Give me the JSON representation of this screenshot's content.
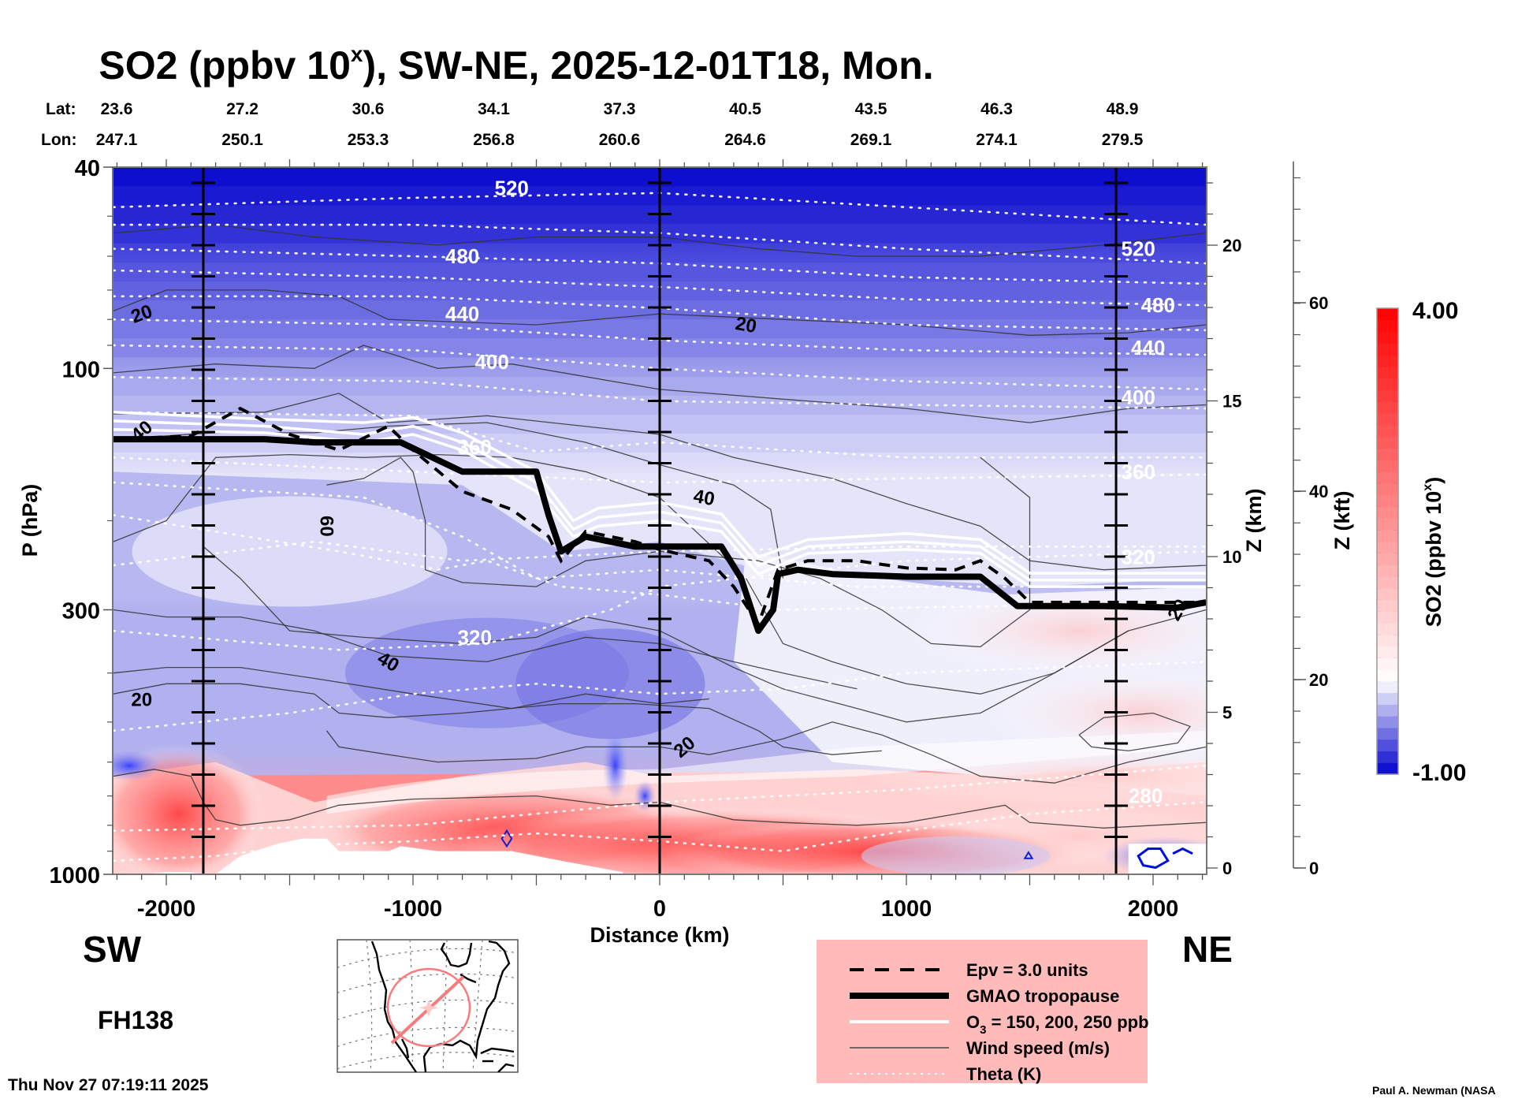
{
  "chart_data": {
    "type": "heatmap",
    "title": "SO2 (ppbv 10",
    "title_sup": "x",
    "title_suffix": "), SW-NE, 2025-12-01T18, Mon.",
    "lat_label": "Lat:",
    "lon_label": "Lon:",
    "lat_ticks": [
      "23.6",
      "27.2",
      "30.6",
      "34.1",
      "37.3",
      "40.5",
      "43.5",
      "46.3",
      "48.9"
    ],
    "lon_ticks": [
      "247.1",
      "250.1",
      "253.3",
      "256.8",
      "260.6",
      "264.6",
      "269.1",
      "274.1",
      "279.5"
    ],
    "latlon_distances_km": [
      -2000,
      -1600,
      -1200,
      -800,
      -400,
      0,
      400,
      800,
      1200
    ],
    "xlabel": "Distance (km)",
    "xlim": [
      -2215,
      2215
    ],
    "xticks": [
      -2000,
      -1000,
      0,
      1000,
      2000
    ],
    "xtick_labels": [
      "-2000",
      "-1000",
      "0",
      "1000",
      "2000"
    ],
    "ylabel": "P (hPa)",
    "yscale": "log",
    "ylim": [
      1000,
      40
    ],
    "yticks": [
      40,
      100,
      300,
      1000
    ],
    "ytick_labels": [
      "40",
      "100",
      "300",
      "1000"
    ],
    "z_km_label": "Z (km)",
    "z_km_ticks": [
      0,
      5,
      10,
      15,
      20
    ],
    "z_kft_label": "Z (kft)",
    "z_kft_ticks": [
      0,
      20,
      40,
      60
    ],
    "vertical_marker_lines_km": [
      -1850,
      0,
      1850
    ],
    "left_end_label": "SW",
    "right_end_label": "NE",
    "forecast_hour": "FH138",
    "timestamp": "Thu Nov 27 07:19:11 2025",
    "credit": "Paul A. Newman (NASA",
    "colorbar": {
      "label": "SO2 (ppbv 10",
      "label_sup": "x",
      "label_suffix": ")",
      "min": -1.0,
      "max": 4.0,
      "min_label": "-1.00",
      "max_label": "4.00",
      "low_color": "#0000cc",
      "mid_color": "#ffffff",
      "high_color": "#ff0000",
      "levels": 40
    },
    "field_regions": [
      {
        "desc": "stratosphere strongly negative",
        "p_top": 40,
        "p_bottom": 60,
        "value": -0.9
      },
      {
        "desc": "upper stratosphere",
        "p_top": 60,
        "p_bottom": 100,
        "value": -0.6
      },
      {
        "desc": "lower stratosphere",
        "p_top": 100,
        "p_bottom": 160,
        "value": -0.3
      },
      {
        "desc": "upper troposphere",
        "p_top": 160,
        "p_bottom": 300,
        "value": -0.1
      },
      {
        "desc": "mid troposphere",
        "p_top": 300,
        "p_bottom": 600,
        "value": -0.35
      },
      {
        "desc": "boundary layer enhanced",
        "p_top": 600,
        "p_bottom": 1000,
        "value": 1.8
      }
    ],
    "theta_contours_K": [
      {
        "value": 520,
        "label_at_km": -600,
        "p": [
          [
            -2215,
            48
          ],
          [
            -1000,
            46
          ],
          [
            0,
            45
          ],
          [
            1000,
            48
          ],
          [
            2215,
            52
          ]
        ]
      },
      {
        "value": 520,
        "label_at_km": 1940,
        "p": [
          [
            -2215,
            52
          ],
          [
            -1000,
            52
          ],
          [
            0,
            54
          ],
          [
            1000,
            58
          ],
          [
            2215,
            62
          ]
        ],
        "labelled_only_right": true
      },
      {
        "value": 480,
        "label_at_km": -800,
        "p": [
          [
            -2215,
            58
          ],
          [
            -1000,
            60
          ],
          [
            0,
            62
          ],
          [
            1000,
            66
          ],
          [
            2215,
            68
          ]
        ]
      },
      {
        "value": 480,
        "label_at_km": 2020,
        "p": [
          [
            -2215,
            64
          ],
          [
            -1000,
            66
          ],
          [
            0,
            69
          ],
          [
            1000,
            73
          ],
          [
            2215,
            75
          ]
        ],
        "labelled_only_right": true
      },
      {
        "value": 440,
        "label_at_km": -800,
        "p": [
          [
            -2215,
            72
          ],
          [
            -1000,
            72
          ],
          [
            0,
            76
          ],
          [
            1000,
            82
          ],
          [
            2215,
            84
          ]
        ]
      },
      {
        "value": 440,
        "label_at_km": 1980,
        "p": [
          [
            -2215,
            80
          ],
          [
            -1000,
            82
          ],
          [
            0,
            88
          ],
          [
            1000,
            92
          ],
          [
            2215,
            94
          ]
        ],
        "labelled_only_right": true
      },
      {
        "value": 400,
        "label_at_km": -700,
        "p": [
          [
            -2215,
            90
          ],
          [
            -1000,
            92
          ],
          [
            0,
            100
          ],
          [
            1000,
            106
          ],
          [
            2215,
            110
          ]
        ]
      },
      {
        "value": 400,
        "label_at_km": 1940,
        "p": [
          [
            -2215,
            104
          ],
          [
            -1000,
            106
          ],
          [
            0,
            116
          ],
          [
            1000,
            118
          ],
          [
            2215,
            120
          ]
        ],
        "labelled_only_right": true
      },
      {
        "value": 360,
        "label_at_km": -750,
        "p": [
          [
            -2215,
            122
          ],
          [
            -1000,
            124
          ],
          [
            -500,
            146
          ],
          [
            0,
            140
          ],
          [
            1000,
            150
          ],
          [
            2215,
            150
          ]
        ]
      },
      {
        "value": 360,
        "label_at_km": 1940,
        "p": [
          [
            -2215,
            150
          ],
          [
            -1000,
            160
          ],
          [
            0,
            168
          ],
          [
            1000,
            165
          ],
          [
            2215,
            162
          ]
        ],
        "labelled_only_right": true
      },
      {
        "value": 320,
        "label_at_km": -750,
        "p": [
          [
            -2215,
            330
          ],
          [
            -1300,
            360
          ],
          [
            -700,
            350
          ],
          [
            -200,
            300
          ],
          [
            0,
            270
          ],
          [
            1000,
            240
          ],
          [
            2215,
            230
          ]
        ]
      },
      {
        "value": 320,
        "label_at_km": 1940,
        "p": [
          [
            -2215,
            245
          ],
          [
            -1400,
            220
          ],
          [
            -800,
            240
          ],
          [
            0,
            230
          ],
          [
            1000,
            225
          ],
          [
            2215,
            225
          ]
        ],
        "labelled_only_right": true
      },
      {
        "value": 280,
        "label_at_km": 1970,
        "p": [
          [
            -2215,
            820
          ],
          [
            -1000,
            800
          ],
          [
            0,
            720
          ],
          [
            1000,
            680
          ],
          [
            2215,
            610
          ]
        ]
      }
    ],
    "wind_speed_contours_ms": [
      {
        "label": "20",
        "label_at": [
          -2100,
          77
        ]
      },
      {
        "label": "20",
        "label_at": [
          350,
          80
        ]
      },
      {
        "label": "40",
        "label_at": [
          -2100,
          131
        ]
      },
      {
        "label": "40",
        "label_at": [
          180,
          185
        ]
      },
      {
        "label": "60",
        "label_at": [
          -1350,
          205
        ]
      },
      {
        "label": "40",
        "label_at": [
          -1100,
          380
        ]
      },
      {
        "label": "20",
        "label_at": [
          -2100,
          450
        ]
      },
      {
        "label": "20",
        "label_at": [
          100,
          560
        ]
      },
      {
        "label": "20",
        "label_at": [
          2100,
          300
        ]
      }
    ],
    "tropopause_hPa": [
      [
        -2215,
        138
      ],
      [
        -1600,
        138
      ],
      [
        -1400,
        140
      ],
      [
        -1050,
        140
      ],
      [
        -800,
        160
      ],
      [
        -500,
        160
      ],
      [
        -450,
        195
      ],
      [
        -400,
        230
      ],
      [
        -300,
        215
      ],
      [
        -100,
        225
      ],
      [
        0,
        225
      ],
      [
        250,
        225
      ],
      [
        330,
        260
      ],
      [
        400,
        330
      ],
      [
        460,
        300
      ],
      [
        480,
        255
      ],
      [
        560,
        250
      ],
      [
        700,
        255
      ],
      [
        1000,
        258
      ],
      [
        1300,
        258
      ],
      [
        1450,
        295
      ],
      [
        1800,
        295
      ],
      [
        2100,
        297
      ],
      [
        2215,
        290
      ]
    ],
    "epv3_hPa": [
      [
        -2215,
        138
      ],
      [
        -1900,
        136
      ],
      [
        -1700,
        120
      ],
      [
        -1500,
        135
      ],
      [
        -1300,
        145
      ],
      [
        -1100,
        130
      ],
      [
        -1000,
        145
      ],
      [
        -800,
        175
      ],
      [
        -600,
        190
      ],
      [
        -450,
        215
      ],
      [
        -400,
        240
      ],
      [
        -300,
        210
      ],
      [
        -100,
        220
      ],
      [
        0,
        228
      ],
      [
        200,
        240
      ],
      [
        300,
        270
      ],
      [
        400,
        320
      ],
      [
        480,
        250
      ],
      [
        600,
        240
      ],
      [
        800,
        240
      ],
      [
        1000,
        248
      ],
      [
        1200,
        250
      ],
      [
        1300,
        240
      ],
      [
        1400,
        260
      ],
      [
        1500,
        290
      ],
      [
        2215,
        290
      ]
    ],
    "ozone_ppb_lines": [
      {
        "value": 150,
        "p": [
          [
            -2215,
            132
          ],
          [
            -1600,
            134
          ],
          [
            -1200,
            140
          ],
          [
            -1000,
            135
          ],
          [
            -800,
            145
          ],
          [
            -500,
            175
          ],
          [
            -350,
            215
          ],
          [
            -250,
            205
          ],
          [
            0,
            200
          ],
          [
            250,
            210
          ],
          [
            400,
            255
          ],
          [
            600,
            232
          ],
          [
            1000,
            228
          ],
          [
            1300,
            232
          ],
          [
            1500,
            270
          ],
          [
            2215,
            270
          ]
        ]
      },
      {
        "value": 200,
        "p": [
          [
            -2215,
            127
          ],
          [
            -1600,
            130
          ],
          [
            -1200,
            135
          ],
          [
            -1000,
            130
          ],
          [
            -800,
            140
          ],
          [
            -500,
            168
          ],
          [
            -350,
            208
          ],
          [
            -250,
            197
          ],
          [
            0,
            192
          ],
          [
            250,
            202
          ],
          [
            400,
            245
          ],
          [
            600,
            225
          ],
          [
            1000,
            220
          ],
          [
            1300,
            225
          ],
          [
            1500,
            262
          ],
          [
            2215,
            262
          ]
        ]
      },
      {
        "value": 250,
        "p": [
          [
            -2215,
            122
          ],
          [
            -1600,
            126
          ],
          [
            -1200,
            128
          ],
          [
            -1000,
            125
          ],
          [
            -800,
            134
          ],
          [
            -500,
            160
          ],
          [
            -350,
            200
          ],
          [
            -250,
            189
          ],
          [
            0,
            184
          ],
          [
            250,
            194
          ],
          [
            400,
            236
          ],
          [
            600,
            218
          ],
          [
            1000,
            212
          ],
          [
            1300,
            218
          ],
          [
            1500,
            254
          ],
          [
            2215,
            254
          ]
        ]
      }
    ],
    "legend": {
      "position": "bottom-center-right",
      "background": "#ffbaba",
      "entries": [
        {
          "style": "dashed",
          "label": "Epv = 3.0 units"
        },
        {
          "style": "thick-solid",
          "label": "GMAO tropopause"
        },
        {
          "style": "white-solid",
          "label_pre": "O",
          "label_sub": "3",
          "label_post": " = 150, 200, 250 ppb"
        },
        {
          "style": "thin-solid",
          "label": "Wind speed (m/s)"
        },
        {
          "style": "dotted-white",
          "label": "Theta (K)"
        }
      ]
    },
    "inset_map": {
      "desc": "North America orthographic map with cross-section line SW-NE",
      "line_color": "#f87c7c",
      "endpoints_latlon": [
        [
          23.6,
          247.1
        ],
        [
          48.9,
          279.5
        ]
      ]
    }
  }
}
